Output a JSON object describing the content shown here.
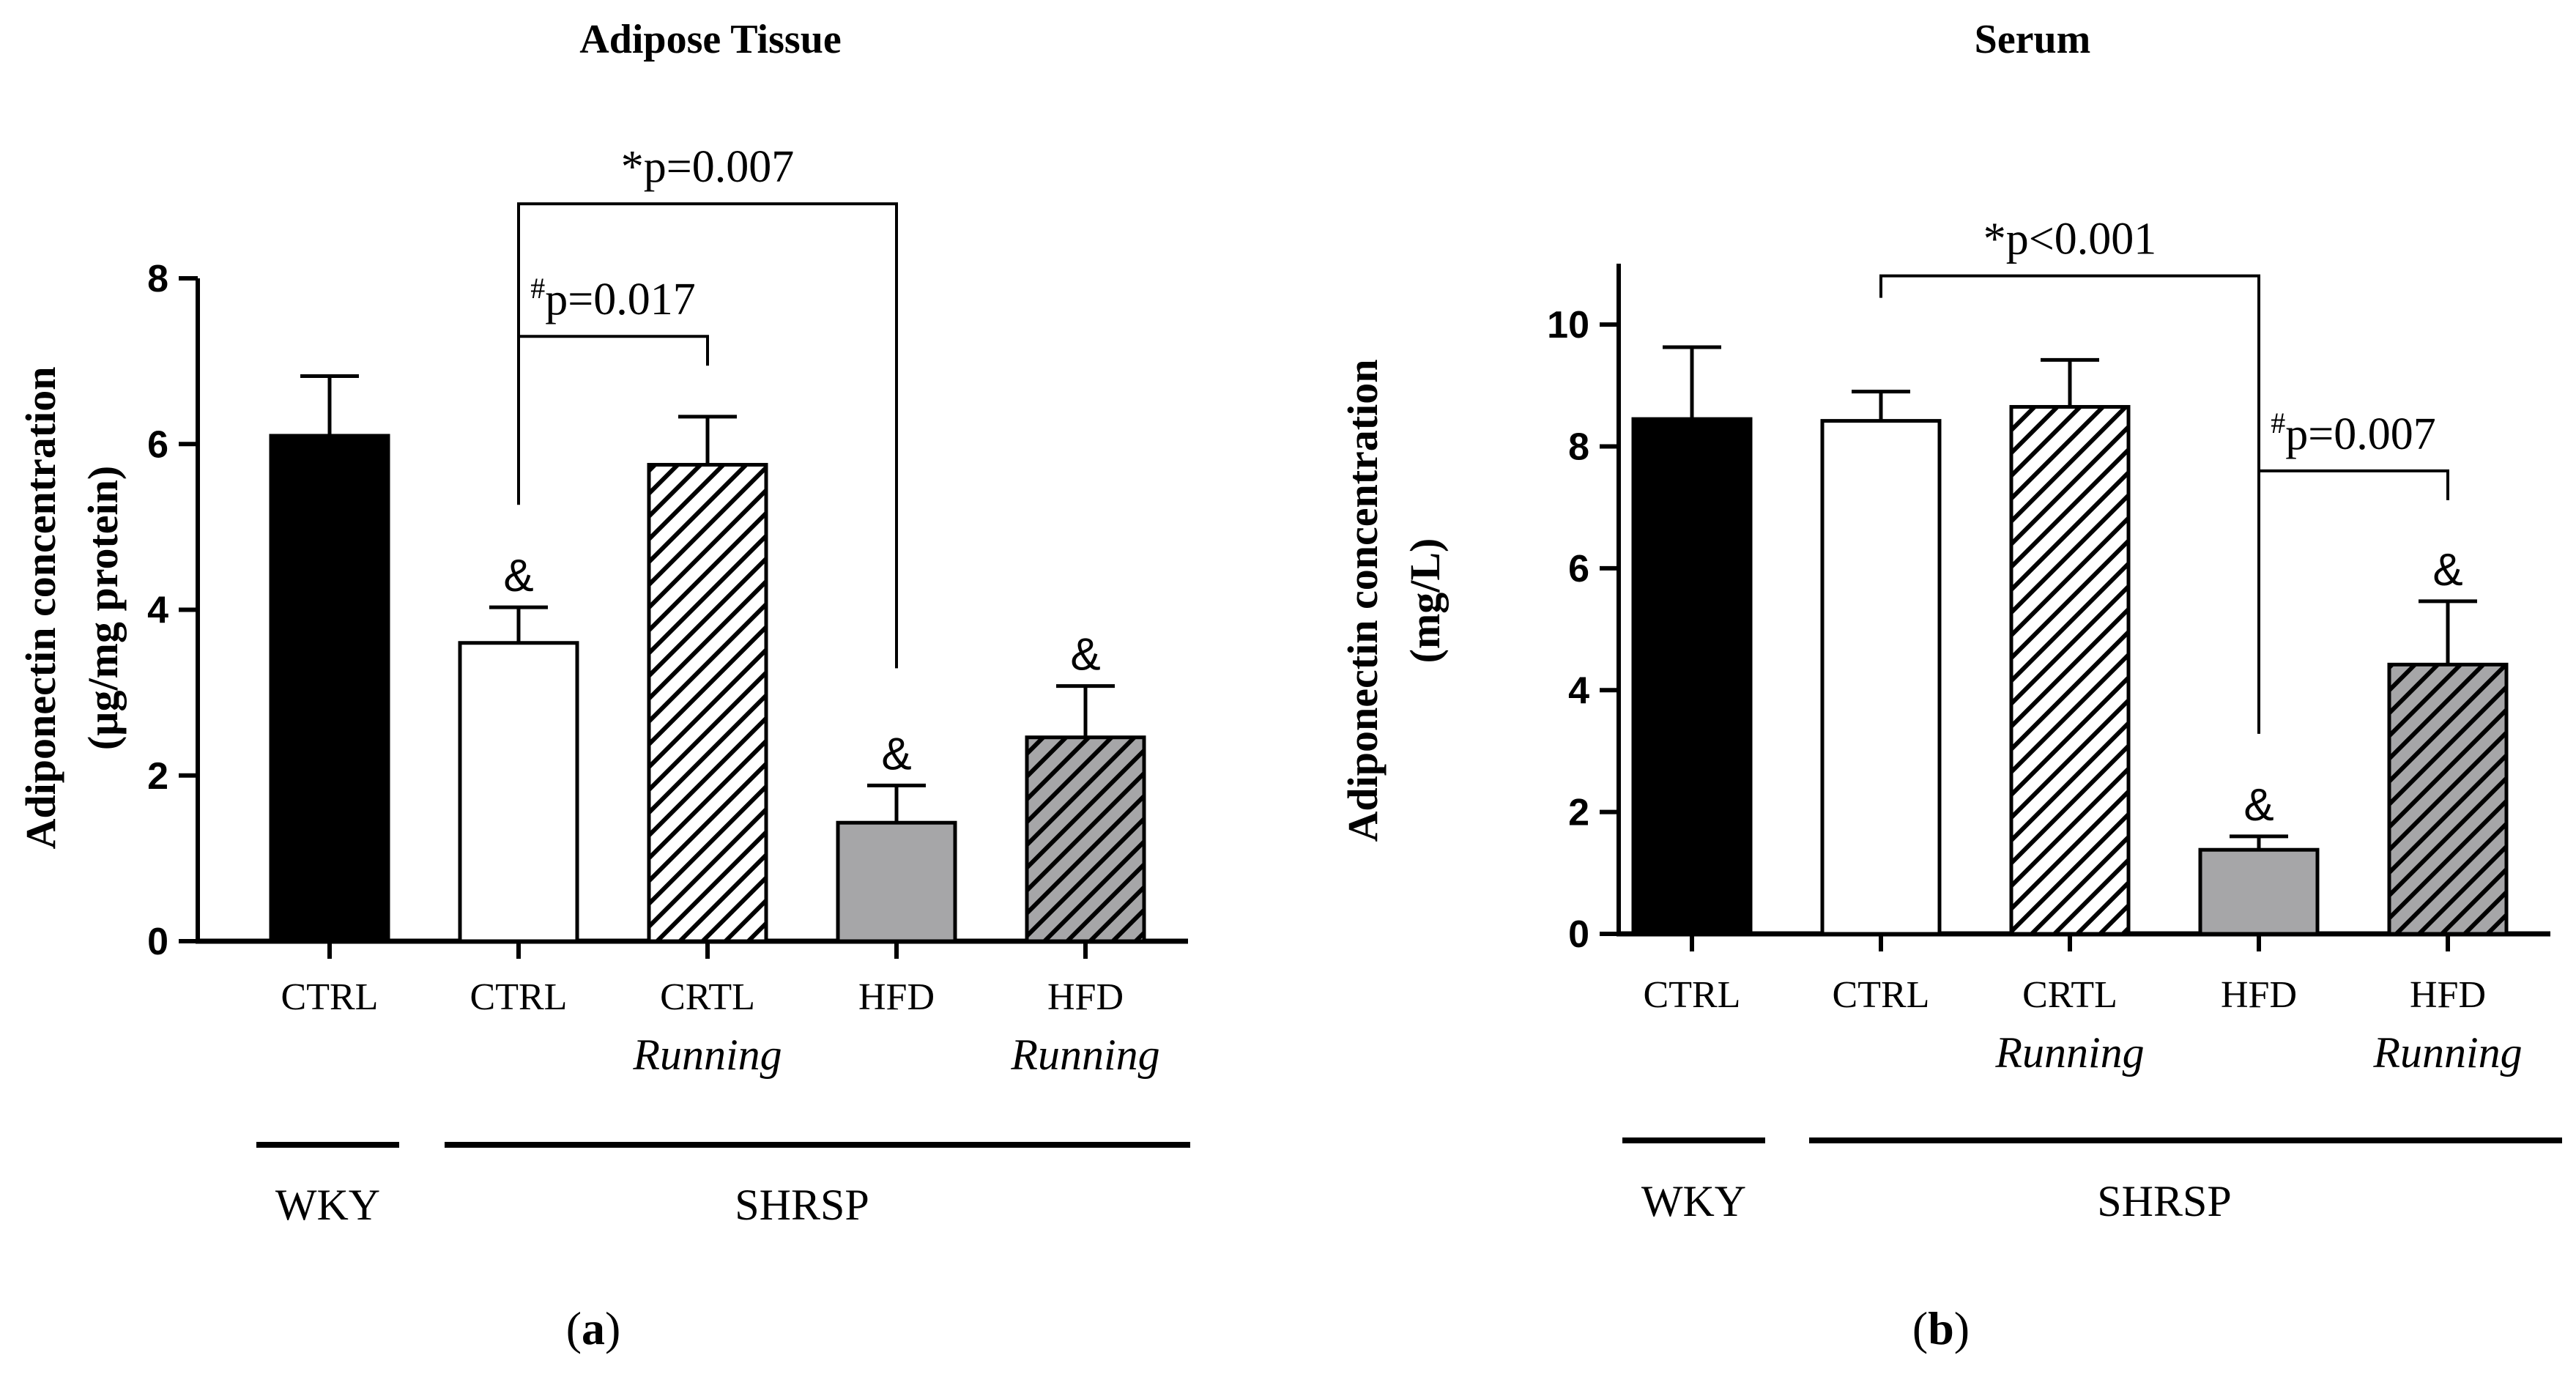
{
  "chart_data": [
    {
      "type": "bar",
      "panel_label": "a",
      "title": "Adipose Tissue",
      "ylabel_line1": "Adiponectin concentration",
      "ylabel_line2": "(µg/mg protein)",
      "ylim": [
        0,
        8
      ],
      "yticks": [
        0,
        2,
        4,
        6,
        8
      ],
      "grid": false,
      "categories": [
        {
          "line1": "CTRL",
          "line2": ""
        },
        {
          "line1": "CTRL",
          "line2": ""
        },
        {
          "line1": "CRTL",
          "line2": "Running"
        },
        {
          "line1": "HFD",
          "line2": ""
        },
        {
          "line1": "HFD",
          "line2": "Running"
        }
      ],
      "values": [
        6.1,
        3.6,
        5.75,
        1.43,
        2.46
      ],
      "errors": [
        0.72,
        0.43,
        0.58,
        0.45,
        0.62
      ],
      "fills": [
        "solid-black",
        "white",
        "hatch-white",
        "solid-gray",
        "hatch-gray"
      ],
      "bar_marks": [
        "",
        "&",
        "",
        "&",
        "&"
      ],
      "groups": [
        {
          "label": "WKY",
          "first": 0,
          "last": 0
        },
        {
          "label": "SHRSP",
          "first": 1,
          "last": 4
        }
      ],
      "comparisons": [
        {
          "from": 1,
          "to": 3,
          "mark": "*",
          "text": "p=0.007",
          "level": 8.9
        },
        {
          "from": 1,
          "to": 2,
          "mark": "#",
          "text": "p=0.017",
          "level": 7.3
        }
      ]
    },
    {
      "type": "bar",
      "panel_label": "b",
      "title": "Serum",
      "ylabel_line1": "Adiponectin concentration",
      "ylabel_line2": "(mg/L)",
      "ylim": [
        0,
        11
      ],
      "yticks": [
        0,
        2,
        4,
        6,
        8,
        10
      ],
      "grid": false,
      "categories": [
        {
          "line1": "CTRL",
          "line2": ""
        },
        {
          "line1": "CTRL",
          "line2": ""
        },
        {
          "line1": "CRTL",
          "line2": "Running"
        },
        {
          "line1": "HFD",
          "line2": ""
        },
        {
          "line1": "HFD",
          "line2": "Running"
        }
      ],
      "values": [
        8.45,
        8.42,
        8.65,
        1.38,
        4.42
      ],
      "errors": [
        1.18,
        0.48,
        0.77,
        0.22,
        1.04
      ],
      "fills": [
        "solid-black",
        "white",
        "hatch-white",
        "solid-gray",
        "hatch-gray"
      ],
      "bar_marks": [
        "",
        "",
        "",
        "&",
        "&"
      ],
      "groups": [
        {
          "label": "WKY",
          "first": 0,
          "last": 0
        },
        {
          "label": "SHRSP",
          "first": 1,
          "last": 4
        }
      ],
      "comparisons": [
        {
          "from": 1,
          "to": 3,
          "mark": "*",
          "text": "p<0.001",
          "level": 10.8
        },
        {
          "from": 3,
          "to": 4,
          "mark": "#",
          "text": "p=0.007",
          "level": 7.6
        }
      ]
    }
  ],
  "colors": {
    "black": "#000000",
    "gray": "#a6a6a8",
    "white": "#ffffff"
  }
}
